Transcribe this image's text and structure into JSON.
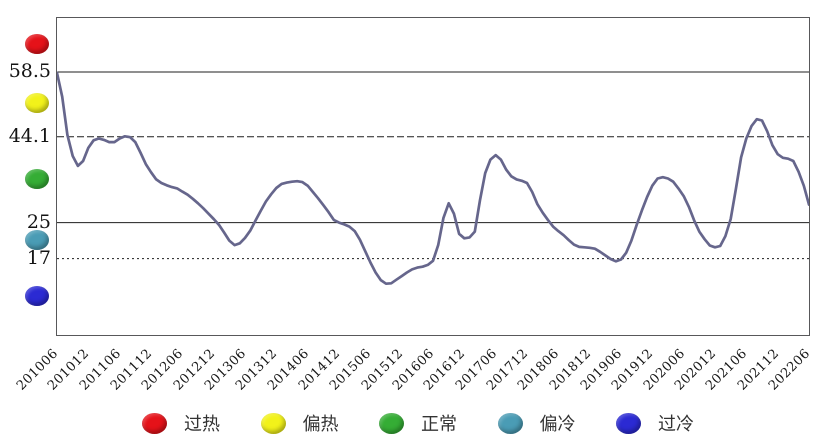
{
  "chart_data": {
    "type": "line",
    "title": "",
    "xlabel": "",
    "ylabel": "",
    "x_first": "201006",
    "x_last": "202206",
    "x_frequency": "monthly",
    "x_ticks": [
      "201006",
      "201012",
      "201106",
      "201112",
      "201206",
      "201212",
      "201306",
      "201312",
      "201406",
      "201412",
      "201506",
      "201512",
      "201606",
      "201612",
      "201706",
      "201712",
      "201806",
      "201812",
      "201906",
      "201912",
      "202006",
      "202012",
      "202106",
      "202112",
      "202206"
    ],
    "values": [
      58.3,
      53.0,
      44.5,
      39.8,
      37.6,
      38.7,
      41.6,
      43.3,
      43.7,
      43.4,
      42.9,
      42.9,
      43.7,
      44.2,
      44.0,
      42.9,
      40.5,
      38.0,
      36.2,
      34.6,
      33.8,
      33.3,
      32.9,
      32.6,
      31.9,
      31.2,
      30.3,
      29.3,
      28.2,
      27.0,
      25.8,
      24.5,
      22.8,
      21.0,
      20.0,
      20.4,
      21.6,
      23.2,
      25.4,
      27.6,
      29.7,
      31.3,
      32.7,
      33.6,
      33.9,
      34.1,
      34.2,
      34.0,
      33.2,
      31.8,
      30.4,
      28.9,
      27.3,
      25.6,
      25.0,
      24.6,
      24.1,
      23.1,
      21.2,
      18.7,
      16.2,
      13.9,
      12.2,
      11.4,
      11.5,
      12.3,
      13.1,
      13.9,
      14.6,
      15.0,
      15.2,
      15.6,
      16.5,
      20.0,
      26.0,
      29.3,
      27.0,
      22.5,
      21.5,
      21.7,
      23.0,
      30.0,
      36.0,
      39.0,
      40.0,
      39.0,
      36.8,
      35.3,
      34.6,
      34.3,
      33.8,
      31.8,
      29.1,
      27.2,
      25.6,
      24.1,
      23.1,
      22.2,
      21.1,
      20.1,
      19.6,
      19.5,
      19.4,
      19.2,
      18.5,
      17.7,
      16.9,
      16.4,
      16.8,
      18.3,
      21.0,
      24.5,
      27.7,
      30.7,
      33.2,
      34.8,
      35.1,
      34.8,
      34.1,
      32.6,
      30.9,
      28.5,
      25.5,
      23.0,
      21.3,
      19.9,
      19.5,
      19.8,
      22.0,
      25.8,
      32.5,
      39.5,
      43.7,
      46.5,
      48.0,
      47.7,
      45.3,
      42.2,
      40.2,
      39.4,
      39.2,
      38.7,
      36.3,
      33.2,
      29.0
    ],
    "ylim": [
      0,
      70.5
    ],
    "grid": "horizontal-thresholds-only",
    "gridlines": [
      {
        "value": 58.5,
        "label": "58.5",
        "style": "solid"
      },
      {
        "value": 44.1,
        "label": "44.1",
        "style": "dashed"
      },
      {
        "value": 25,
        "label": "25",
        "style": "solid"
      },
      {
        "value": 17,
        "label": "17",
        "style": "dotted"
      }
    ],
    "line_color": "#66668c",
    "legend_position": "bottom",
    "legend_zones": [
      {
        "label": "过热",
        "color": "#e51219",
        "range": [
          58.5,
          70.5
        ]
      },
      {
        "label": "偏热",
        "color": "#f2f21a",
        "range": [
          44.1,
          58.5
        ]
      },
      {
        "label": "正常",
        "color": "#35ad35",
        "range": [
          25,
          44.1
        ]
      },
      {
        "label": "偏冷",
        "color": "#4a9cb5",
        "range": [
          17,
          25
        ]
      },
      {
        "label": "过冷",
        "color": "#2b2ad3",
        "range": [
          0,
          17
        ]
      }
    ]
  }
}
